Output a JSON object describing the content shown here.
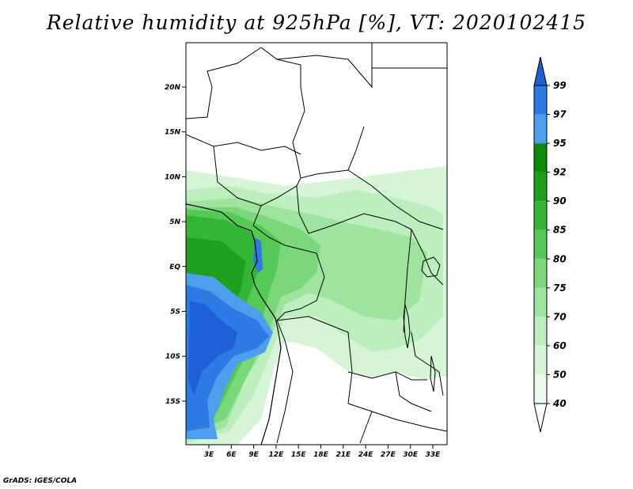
{
  "title": "Relative humidity at 925hPa [%], VT: 2020102415",
  "credit": "GrADS: IGES/COLA",
  "map": {
    "lat_labels": [
      "20N",
      "15N",
      "10N",
      "5N",
      "EQ",
      "5S",
      "10S",
      "15S"
    ],
    "lon_labels": [
      "3E",
      "6E",
      "9E",
      "12E",
      "15E",
      "18E",
      "21E",
      "24E",
      "27E",
      "30E",
      "33E"
    ]
  },
  "colorbar": {
    "labels": [
      "99",
      "97",
      "95",
      "92",
      "90",
      "85",
      "80",
      "75",
      "70",
      "60",
      "50",
      "40"
    ],
    "colors": [
      "#1f5fd6",
      "#2c7be5",
      "#4d9fee",
      "#0f8a0f",
      "#1f9f1f",
      "#35b535",
      "#55c955",
      "#7ad87a",
      "#9ee49e",
      "#bdeebd",
      "#d6f5d6",
      "#ecfbec"
    ]
  }
}
